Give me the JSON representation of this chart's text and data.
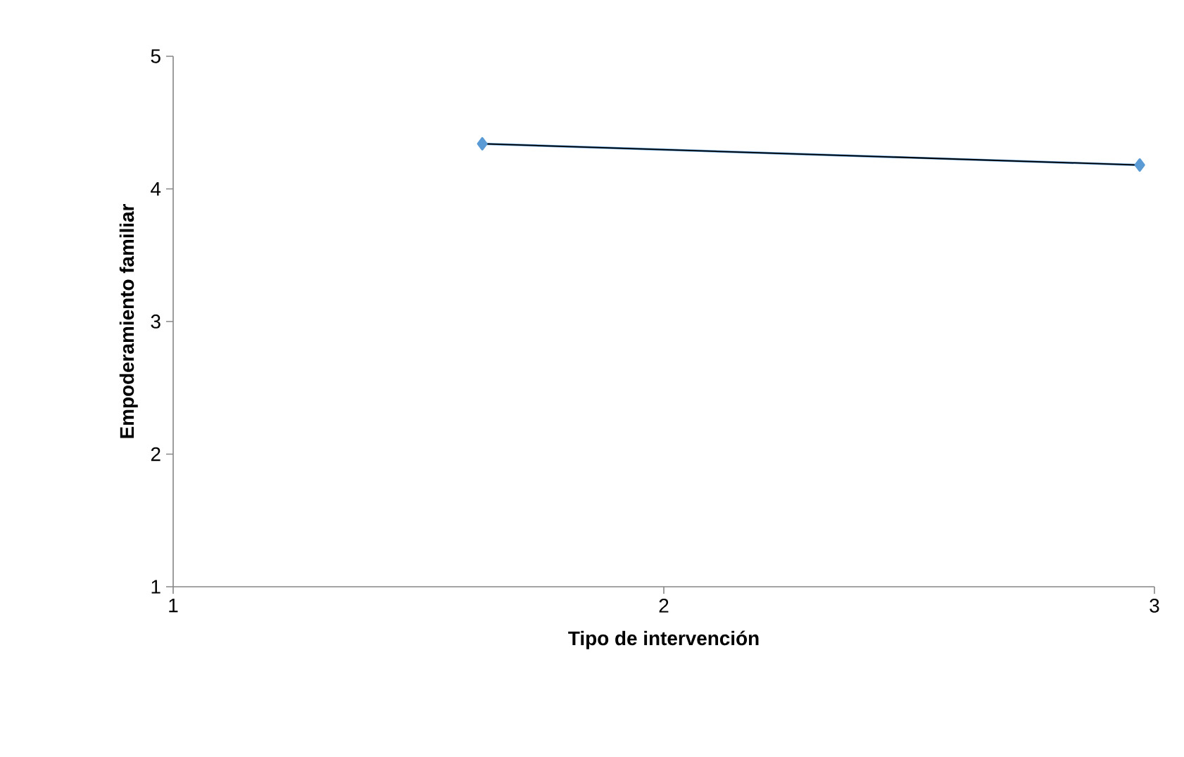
{
  "chart_data": {
    "type": "line",
    "xlabel": "Tipo de intervención",
    "ylabel": "Empoderamiento familiar",
    "xlim": [
      1,
      3
    ],
    "xticks": [
      1,
      2,
      3
    ],
    "ylim": [
      1,
      5
    ],
    "yticks": [
      1,
      2,
      3,
      4,
      5
    ],
    "grid": false,
    "x": [
      1.63,
      2.97
    ],
    "series": [
      {
        "color": "#5b9bd5",
        "marker": "diamond",
        "values": [
          4.34,
          4.18
        ]
      },
      {
        "color": "#000000",
        "marker": "none",
        "values": [
          4.34,
          4.18
        ]
      }
    ]
  }
}
